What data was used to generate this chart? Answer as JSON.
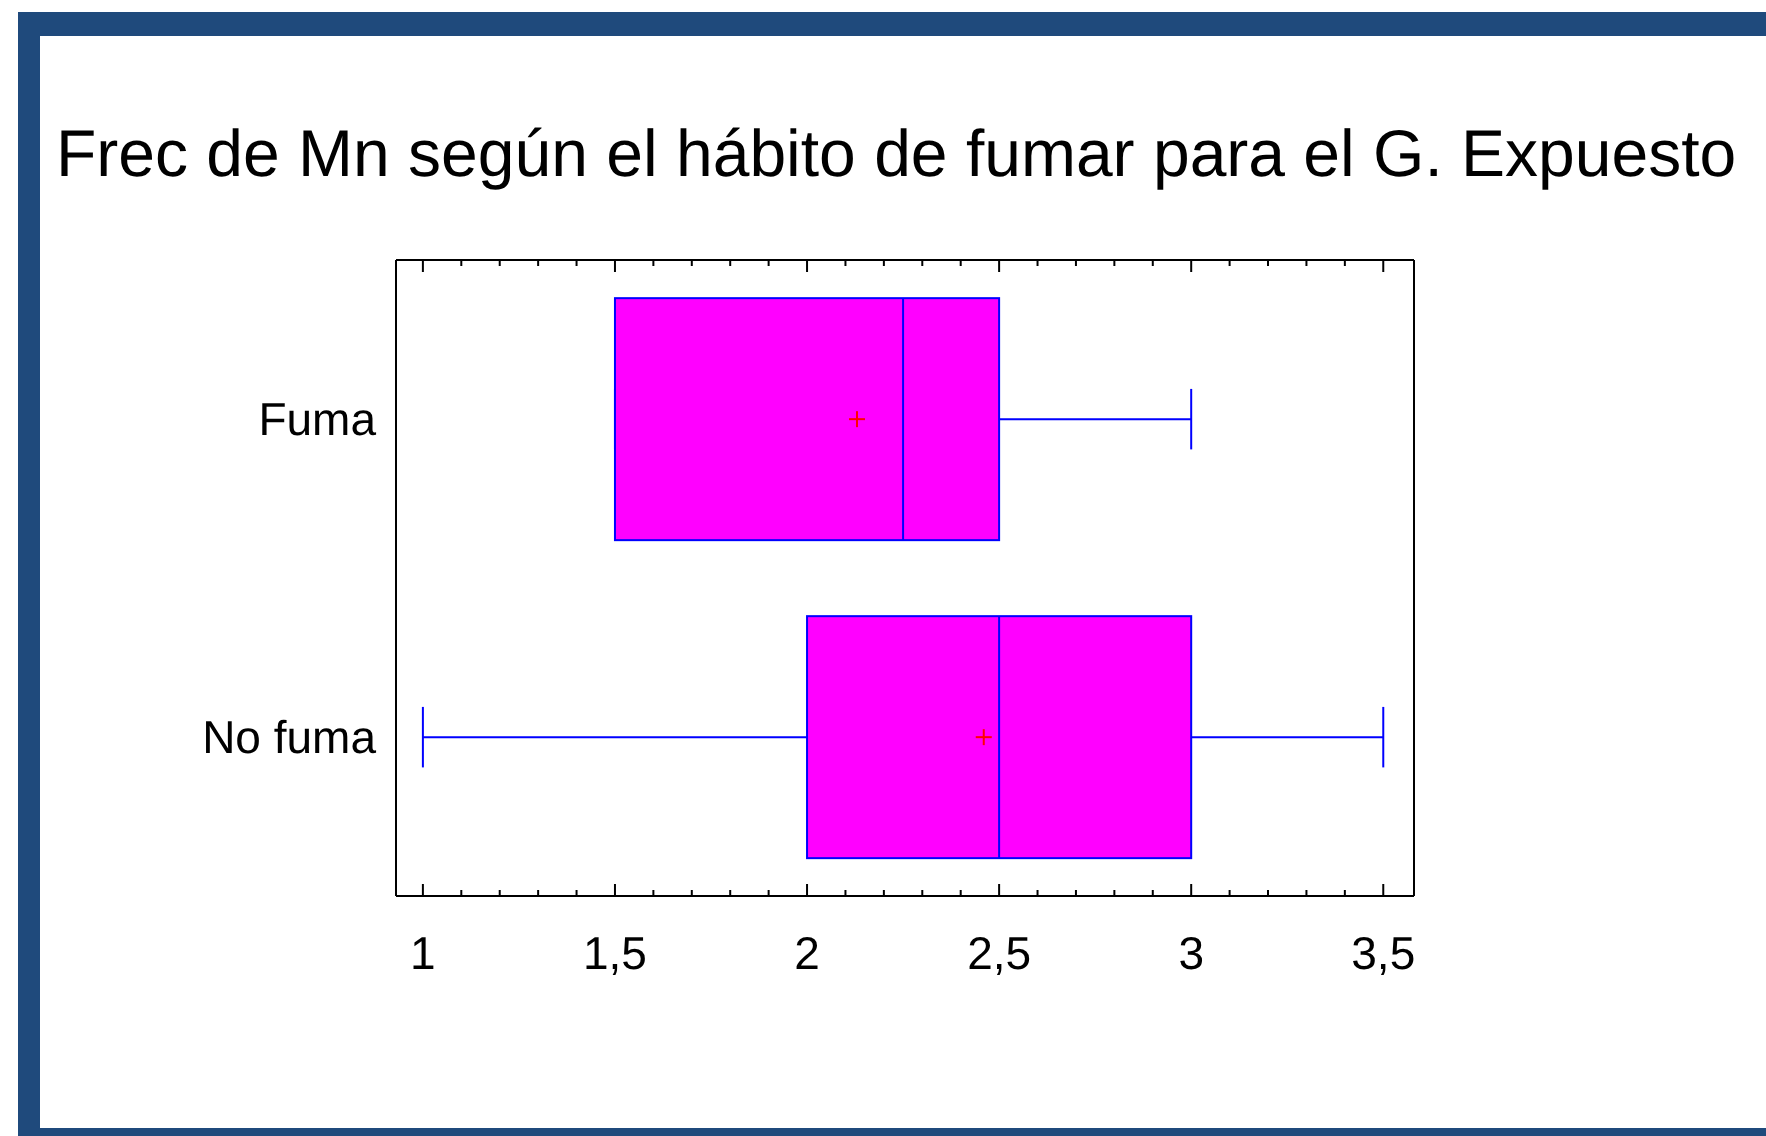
{
  "chart_data": {
    "type": "box",
    "title": "Frec de Mn según el hábito de fumar para el G. Expuesto",
    "orientation": "horizontal",
    "color": "#ff00ff",
    "categories": [
      "Fuma",
      "No fuma"
    ],
    "boxes": [
      {
        "low": 1.5,
        "q1": 1.5,
        "median": 2.25,
        "q3": 2.5,
        "high": 3,
        "mean": 2.13
      },
      {
        "low": 1,
        "q1": 2,
        "median": 2.5,
        "q3": 3,
        "high": 3.5,
        "mean": 2.46
      }
    ],
    "xlim": [
      0.93,
      3.58
    ],
    "xticks": [
      1,
      {
        "value": 1.1,
        "label": null
      },
      {
        "value": 1.2,
        "label": null
      },
      {
        "value": 1.3,
        "label": null
      },
      {
        "value": 1.4,
        "label": null
      },
      {
        "value": 1.5,
        "label": "1,5"
      },
      {
        "value": 1.6,
        "label": null
      },
      {
        "value": 1.7,
        "label": null
      },
      {
        "value": 1.8,
        "label": null
      },
      {
        "value": 1.9,
        "label": null
      },
      2,
      {
        "value": 2.1,
        "label": null
      },
      {
        "value": 2.2,
        "label": null
      },
      {
        "value": 2.3,
        "label": null
      },
      {
        "value": 2.4,
        "label": null
      },
      {
        "value": 2.5,
        "label": "2,5"
      },
      {
        "value": 2.6,
        "label": null
      },
      {
        "value": 2.7,
        "label": null
      },
      {
        "value": 2.8,
        "label": null
      },
      {
        "value": 2.9,
        "label": null
      },
      3,
      {
        "value": 3.1,
        "label": null
      },
      {
        "value": 3.2,
        "label": null
      },
      {
        "value": 3.3,
        "label": null
      },
      {
        "value": 3.4,
        "label": null
      },
      {
        "value": 3.5,
        "label": "3,5"
      }
    ]
  }
}
